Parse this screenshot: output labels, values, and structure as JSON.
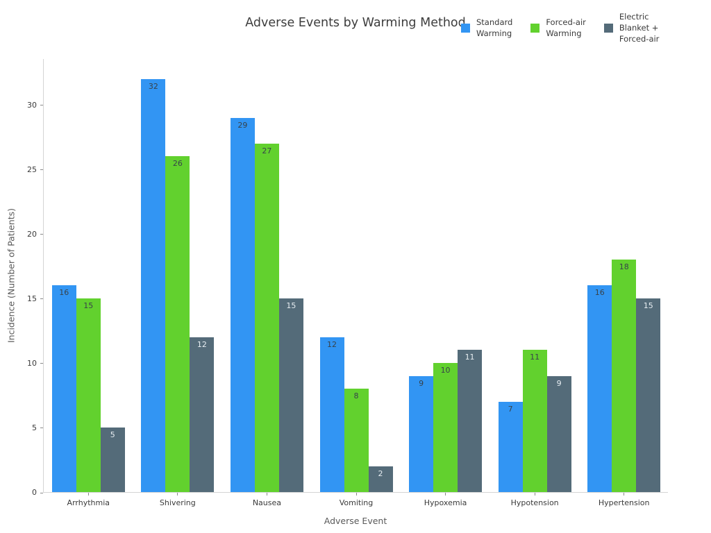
{
  "chart_data": {
    "type": "bar",
    "title": "Adverse Events by Warming Method",
    "xlabel": "Adverse Event",
    "ylabel": "Incidence (Number of Patients)",
    "categories": [
      "Arrhythmia",
      "Shivering",
      "Nausea",
      "Vomiting",
      "Hypoxemia",
      "Hypotension",
      "Hypertension"
    ],
    "series": [
      {
        "name": "Standard Warming",
        "legend_label": "Standard\nWarming",
        "color": "#3295f3",
        "bar_label_color": "#37424a",
        "values": [
          16,
          32,
          29,
          12,
          9,
          7,
          16
        ]
      },
      {
        "name": "Forced-air Warming",
        "legend_label": "Forced-air\nWarming",
        "color": "#62d12e",
        "bar_label_color": "#37424a",
        "values": [
          15,
          26,
          27,
          8,
          10,
          11,
          18
        ]
      },
      {
        "name": "Electric Blanket + Forced-air",
        "legend_label": "Electric\nBlanket +\nForced-air",
        "color": "#546b79",
        "bar_label_color": "#e8eef2",
        "values": [
          5,
          12,
          15,
          2,
          11,
          9,
          15
        ]
      }
    ],
    "ylim": [
      0,
      33.6
    ],
    "yticks": [
      0,
      5,
      10,
      15,
      20,
      25,
      30
    ],
    "grid": false,
    "legend_position": "top-right",
    "bar_value_labels": true,
    "axis_color": "#d4d4d4",
    "tick_color": "#8a8a8a"
  }
}
